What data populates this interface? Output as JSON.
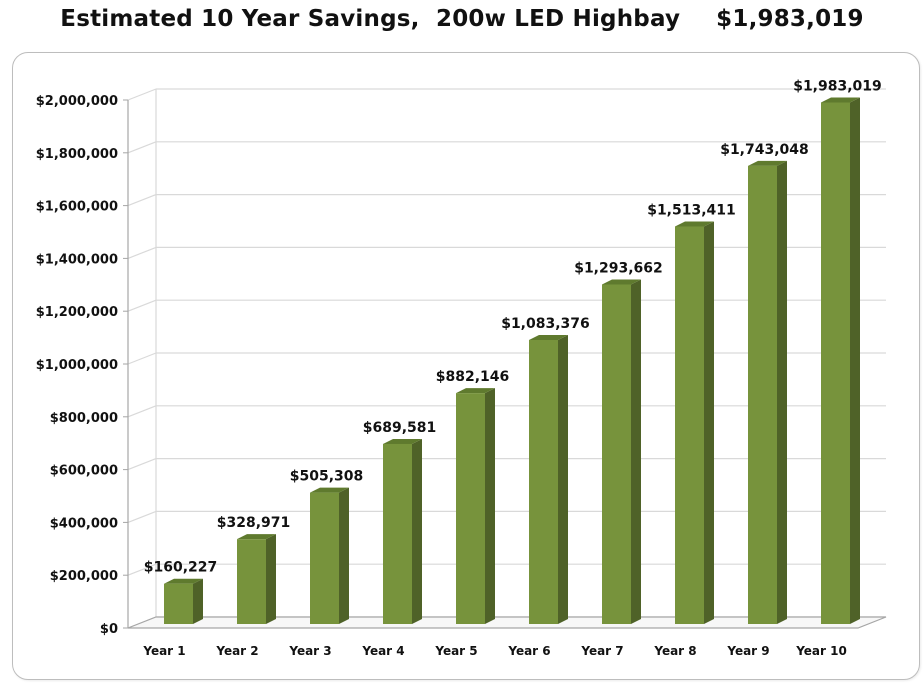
{
  "header": {
    "title": "Estimated 10 Year Savings,  200w LED Highbay",
    "total": "$1,983,019"
  },
  "chart_data": {
    "type": "bar",
    "style": "3d-column",
    "title": "Estimated 10 Year Savings,  200w LED Highbay",
    "xlabel": "",
    "ylabel": "",
    "categories": [
      "Year 1",
      "Year 2",
      "Year 3",
      "Year 4",
      "Year 5",
      "Year 6",
      "Year 7",
      "Year 8",
      "Year 9",
      "Year 10"
    ],
    "values": [
      160227,
      328971,
      505308,
      689581,
      882146,
      1083376,
      1293662,
      1513411,
      1743048,
      1983019
    ],
    "data_labels": [
      "$160,227",
      "$328,971",
      "$505,308",
      "$689,581",
      "$882,146",
      "$1,083,376",
      "$1,293,662",
      "$1,513,411",
      "$1,743,048",
      "$1,983,019"
    ],
    "ylim": [
      0,
      2000000
    ],
    "y_ticks": [
      0,
      200000,
      400000,
      600000,
      800000,
      1000000,
      1200000,
      1400000,
      1600000,
      1800000,
      2000000
    ],
    "y_tick_labels": [
      "$0",
      "$200,000",
      "$400,000",
      "$600,000",
      "$800,000",
      "$1,000,000",
      "$1,200,000",
      "$1,400,000",
      "$1,600,000",
      "$1,800,000",
      "$2,000,000"
    ],
    "grid": true,
    "legend": "none",
    "colors": {
      "bar_front": "#77933c",
      "bar_side": "#4f6228",
      "bar_top": "#5f7a2e",
      "grid": "#d9d9d9",
      "axis": "#a6a6a6"
    }
  }
}
